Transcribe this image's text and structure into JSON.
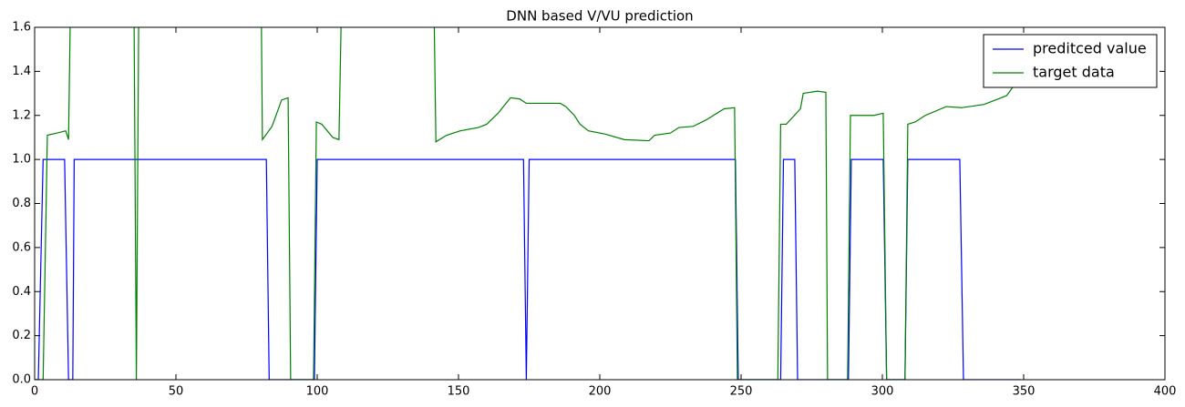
{
  "chart_data": {
    "type": "line",
    "title": "DNN based V/VU prediction",
    "xlim": [
      0,
      400
    ],
    "ylim": [
      0,
      1.6
    ],
    "xticks": [
      0,
      50,
      100,
      150,
      200,
      250,
      300,
      350,
      400
    ],
    "yticks": [
      {
        "value": 0,
        "label": "0.0"
      },
      {
        "value": 0.2,
        "label": "0.2"
      },
      {
        "value": 0.4,
        "label": "0.4"
      },
      {
        "value": 0.6,
        "label": "0.6"
      },
      {
        "value": 0.8,
        "label": "0.8"
      },
      {
        "value": 1.0,
        "label": "1.0"
      },
      {
        "value": 1.2,
        "label": "1.2"
      },
      {
        "value": 1.4,
        "label": "1.4"
      },
      {
        "value": 1.6,
        "label": "1.6"
      }
    ],
    "legend": "upper right",
    "series": [
      {
        "name": "preditced value",
        "color": "#0000ff",
        "x": [
          0,
          1.3,
          3,
          10.6,
          12,
          13.5,
          14,
          82,
          83,
          99,
          100,
          173,
          174,
          175,
          248,
          249,
          264,
          265,
          269,
          270,
          288,
          289,
          300.3,
          301.5,
          308,
          309,
          327.4,
          328.7,
          349
        ],
        "values": [
          0,
          0,
          1,
          1,
          0,
          0,
          1,
          1,
          0,
          0,
          1,
          1,
          0,
          1,
          1,
          0,
          0,
          1,
          1,
          0,
          0,
          1,
          1,
          0,
          0,
          1,
          1,
          0,
          0
        ]
      },
      {
        "name": "target data",
        "color": "#008000",
        "x": [
          0,
          3,
          4.5,
          8,
          11,
          12,
          13,
          35,
          36,
          37,
          80,
          80.6,
          84,
          87.4,
          89.7,
          90.6,
          98.7,
          99.7,
          101.6,
          105.5,
          107.7,
          109,
          141,
          142,
          145.8,
          150.6,
          157,
          160,
          164,
          168.4,
          171.6,
          174,
          181,
          186,
          188,
          191,
          193,
          196,
          202,
          208.7,
          217.4,
          219.4,
          225,
          228,
          233,
          237.7,
          244,
          247.7,
          248.7,
          263,
          264,
          266,
          271,
          272,
          277,
          280,
          280.6,
          287.7,
          288.7,
          297,
          300.3,
          301.5,
          308,
          309,
          311.6,
          315.2,
          322.6,
          328,
          336,
          342,
          344,
          347.4,
          350
        ],
        "values": [
          0,
          0,
          1.11,
          1.12,
          1.13,
          1.09,
          2.0,
          2.0,
          0,
          2.0,
          2.0,
          1.09,
          1.15,
          1.27,
          1.28,
          0,
          0,
          1.17,
          1.16,
          1.1,
          1.09,
          2.0,
          2.0,
          1.08,
          1.11,
          1.13,
          1.145,
          1.16,
          1.21,
          1.28,
          1.275,
          1.255,
          1.255,
          1.255,
          1.24,
          1.2,
          1.16,
          1.13,
          1.115,
          1.09,
          1.085,
          1.11,
          1.12,
          1.145,
          1.15,
          1.18,
          1.23,
          1.235,
          0,
          0,
          1.16,
          1.16,
          1.23,
          1.3,
          1.31,
          1.305,
          0,
          0,
          1.2,
          1.2,
          1.21,
          0,
          0,
          1.16,
          1.17,
          1.2,
          1.24,
          1.235,
          1.25,
          1.28,
          1.29,
          1.35,
          1.4
        ]
      }
    ]
  }
}
